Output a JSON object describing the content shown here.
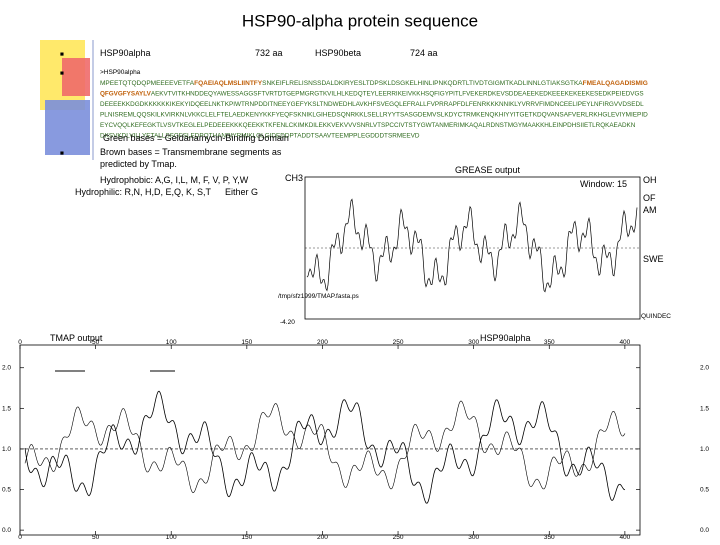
{
  "title": "HSP90-alpha protein sequence",
  "items": {
    "alpha_name": "HSP90alpha",
    "alpha_len": "732 aa",
    "beta_name": "HSP90beta",
    "beta_len": "724 aa"
  },
  "sequence": {
    "header": ">HSP90alpha",
    "lines": [
      [
        {
          "text": "MPEETQTQDQPMEEEEVETFA",
          "highlight": false
        },
        {
          "text": "FQAEIAQLMSLIINTFY",
          "highlight": true
        },
        {
          "text": "SNKEIFLRELISNSSDALDKIRYESLTDPSKLDSGKELHINLIPNKQDRTLTIVDTGIGMTKADLINNLGTIAKSGTKA",
          "highlight": false
        },
        {
          "text": "FMEALQAGADISMIG",
          "highlight": true
        }
      ],
      [
        {
          "text": "QFGVGFYSAYLV",
          "highlight": true
        },
        {
          "text": "AEKVTVITKHNDDEQYAWESSAGGSFTVRTDTGEPMGRGTKVILHLKEDQTEYLEERRIKEIVKKHSQFIGYPITLFVEKERDKEVSDDEAEEKEDKEEEKEKEEKESEDKPEIEDVGS",
          "highlight": false
        }
      ],
      [
        {
          "text": "DEEEEKKDGDKKKKKKIKEKYIDQEELNKTKPIWTRNPDDITNEEYGEFYKSLTNDWEDHLAVKHFSVEGQLEFRALLFVPRRAPFDLFENRKKKNNIKLYVRRVFIMDNCEELIPEYLNFIRGVVDSEDL",
          "highlight": false
        }
      ],
      [
        {
          "text": "PLNISREMLQQSKILKVIRKNLVKKCLELFTELAEDKENYKKFYEQFSKNIKLGIHEDSQNRKKLSELLRYYTSASGDEMVSLKDYCTRMKENQKHIYYITGETKDQVANSAFVERLRKHGLEVIYMIEPID",
          "highlight": false
        }
      ],
      [
        {
          "text": "EYCVQQLKEFEGKTLVSVTKEGLELPEDEEEKKKQEEKKTKFENLCKIMKDILEKKVEKVVVSNRLVTSPCCIVTSTYGWTANMERIMKAQALRDNSTMGYMAAKKHLEINPDHSIIETLRQKAEADKN",
          "highlight": false
        }
      ],
      [
        {
          "text": "DKSVKDLVILLYETALLSSGFSLEDPQTHANRIYRMIKLGLGIDEDDPTADDTSAAVTEEMPPLEGDDDTSRMEEVD",
          "highlight": false
        }
      ]
    ]
  },
  "legend_lines": [
    "Green bases = Geldanamycin-Binding Domain",
    "Brown bases = Transmembrane segments as",
    "predicted by Tmap."
  ],
  "hydrophobic": "Hydrophobic: A,G, I,L, M, F, V, P, Y,W",
  "hydrophilic": "Hydrophilic: R,N, H,D, E,Q, K, S,T",
  "either": "Either G",
  "grease": {
    "title": "GREASE output",
    "window": "Window: 15",
    "left_top": "CH3",
    "left_bottom": "-4.20",
    "right_labels": [
      "OH",
      "OF",
      "AM",
      "SWE",
      "QUINDEC"
    ],
    "file": "/tmp/sfz1999/TMAP.fasta.ps",
    "xlabel": "HSP90alpha"
  },
  "tmap": {
    "title": "TMAP output",
    "xlim": [
      0,
      410
    ],
    "xticks": [
      0,
      50,
      100,
      150,
      200,
      250,
      300,
      350,
      400
    ],
    "ylim": [
      -0.06,
      2.28
    ],
    "yticks": [
      {
        "value": 2,
        "label": "2.0"
      },
      {
        "value": 1.5,
        "label": "1.5"
      },
      {
        "value": 1,
        "label": "1.0"
      },
      {
        "value": 0.5,
        "label": "0.5"
      },
      {
        "value": 0,
        "label": "0.0"
      }
    ]
  }
}
